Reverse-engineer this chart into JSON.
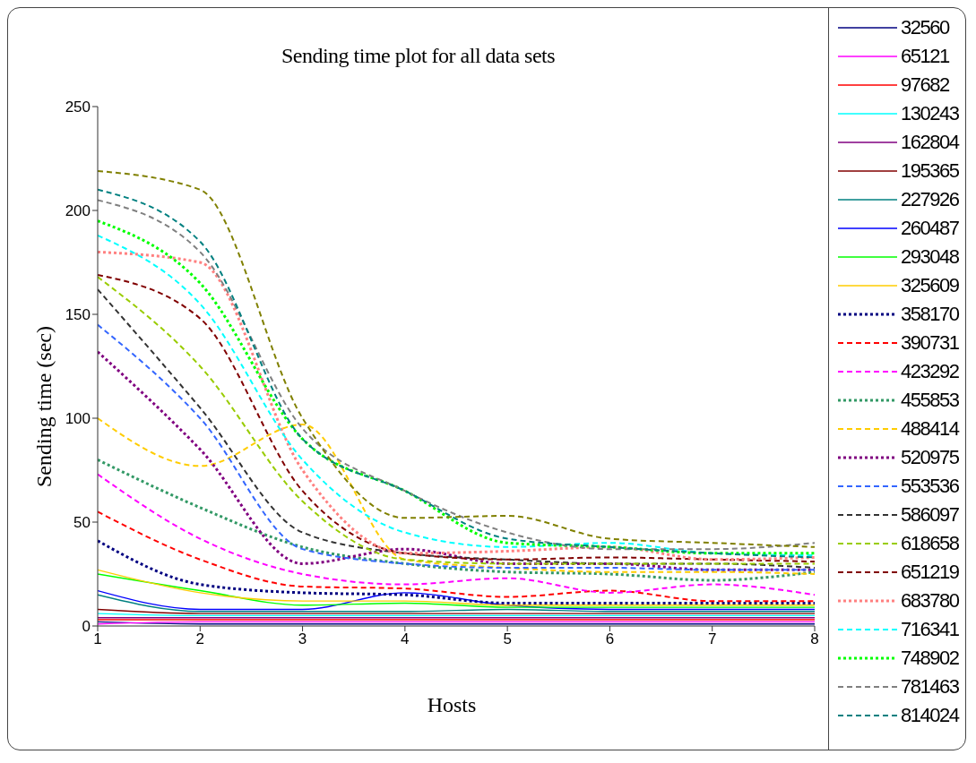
{
  "chart_data": {
    "type": "line",
    "title": "Sending time plot for all data sets",
    "xlabel": "Hosts",
    "ylabel": "Sending time (sec)",
    "x": [
      1,
      2,
      3,
      4,
      5,
      6,
      7,
      8
    ],
    "xlim": [
      1,
      8
    ],
    "xticks": [
      1,
      2,
      3,
      4,
      5,
      6,
      7,
      8
    ],
    "ylim": [
      0,
      250
    ],
    "yticks": [
      0,
      50,
      100,
      150,
      200,
      250
    ],
    "grid": false,
    "legend": "right",
    "marker": "none",
    "series": [
      {
        "name": "32560",
        "color": "#000080",
        "line_style": "solid",
        "values": [
          2,
          1,
          1,
          1,
          1,
          1,
          1,
          1
        ]
      },
      {
        "name": "65121",
        "color": "#ff00ff",
        "line_style": "solid",
        "values": [
          1,
          2,
          2,
          2,
          2,
          2,
          2,
          2
        ]
      },
      {
        "name": "97682",
        "color": "#ff0000",
        "line_style": "solid",
        "values": [
          3,
          3,
          3,
          3,
          3,
          3,
          3,
          3
        ]
      },
      {
        "name": "130243",
        "color": "#00ffff",
        "line_style": "solid",
        "values": [
          6,
          5,
          5,
          5,
          5,
          5,
          5,
          5
        ]
      },
      {
        "name": "162804",
        "color": "#800080",
        "line_style": "solid",
        "values": [
          4,
          4,
          4,
          4,
          4,
          4,
          4,
          4
        ]
      },
      {
        "name": "195365",
        "color": "#800000",
        "line_style": "solid",
        "values": [
          8,
          6,
          6,
          6,
          6,
          6,
          6,
          6
        ]
      },
      {
        "name": "227926",
        "color": "#008080",
        "line_style": "solid",
        "values": [
          15,
          7,
          7,
          7,
          8,
          7,
          7,
          7
        ]
      },
      {
        "name": "260487",
        "color": "#0000ff",
        "line_style": "solid",
        "values": [
          17,
          8,
          8,
          16,
          10,
          8,
          8,
          8
        ]
      },
      {
        "name": "293048",
        "color": "#00ff00",
        "line_style": "solid",
        "values": [
          25,
          17,
          10,
          11,
          9,
          9,
          9,
          9
        ]
      },
      {
        "name": "325609",
        "color": "#ffcc00",
        "line_style": "solid",
        "values": [
          27,
          16,
          12,
          12,
          10,
          10,
          10,
          10
        ]
      },
      {
        "name": "358170",
        "color": "#000080",
        "line_style": "dotted",
        "values": [
          41,
          20,
          16,
          15,
          11,
          11,
          11,
          11
        ]
      },
      {
        "name": "390731",
        "color": "#ff0000",
        "line_style": "dashed",
        "values": [
          55,
          32,
          19,
          18,
          14,
          17,
          12,
          12
        ]
      },
      {
        "name": "423292",
        "color": "#ff00ff",
        "line_style": "dashed",
        "values": [
          73,
          42,
          25,
          20,
          23,
          16,
          20,
          15
        ]
      },
      {
        "name": "455853",
        "color": "#339966",
        "line_style": "dotted",
        "values": [
          80,
          57,
          38,
          30,
          26,
          25,
          22,
          26
        ]
      },
      {
        "name": "488414",
        "color": "#ffcc00",
        "line_style": "dashed",
        "values": [
          100,
          77,
          97,
          32,
          28,
          26,
          26,
          25
        ]
      },
      {
        "name": "520975",
        "color": "#800080",
        "line_style": "dotted",
        "values": [
          132,
          85,
          30,
          37,
          30,
          30,
          27,
          27
        ]
      },
      {
        "name": "553536",
        "color": "#3366ff",
        "line_style": "dashed",
        "values": [
          145,
          100,
          37,
          30,
          28,
          28,
          27,
          27
        ]
      },
      {
        "name": "586097",
        "color": "#333333",
        "line_style": "dashed",
        "values": [
          162,
          105,
          45,
          35,
          32,
          30,
          30,
          28
        ]
      },
      {
        "name": "618658",
        "color": "#99cc00",
        "line_style": "dashed",
        "values": [
          168,
          125,
          60,
          32,
          30,
          30,
          30,
          30
        ]
      },
      {
        "name": "651219",
        "color": "#800000",
        "line_style": "dashed",
        "values": [
          169,
          148,
          65,
          35,
          32,
          33,
          32,
          31
        ]
      },
      {
        "name": "683780",
        "color": "#ff8080",
        "line_style": "dotted",
        "values": [
          180,
          175,
          75,
          35,
          36,
          38,
          32,
          33
        ]
      },
      {
        "name": "716341",
        "color": "#00ffff",
        "line_style": "dashed",
        "values": [
          188,
          155,
          80,
          45,
          38,
          40,
          35,
          34
        ]
      },
      {
        "name": "748902",
        "color": "#00ff00",
        "line_style": "dotted",
        "values": [
          195,
          165,
          90,
          65,
          40,
          38,
          35,
          35
        ]
      },
      {
        "name": "781463",
        "color": "#808080",
        "line_style": "dashed",
        "values": [
          205,
          180,
          95,
          65,
          45,
          37,
          37,
          40
        ]
      },
      {
        "name": "814024",
        "color": "#008080",
        "line_style": "dashed",
        "values": [
          210,
          185,
          90,
          65,
          42,
          38,
          35,
          33
        ]
      },
      {
        "color": "#808000",
        "line_style": "dashed",
        "values": [
          219,
          210,
          100,
          52,
          53,
          42,
          40,
          38
        ]
      }
    ]
  }
}
